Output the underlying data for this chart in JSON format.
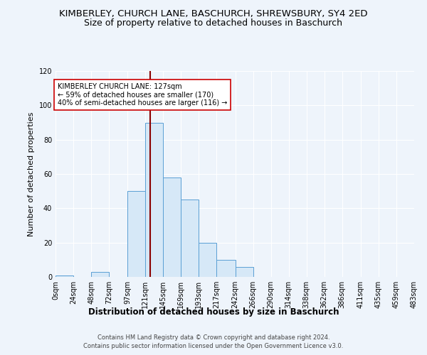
{
  "title": "KIMBERLEY, CHURCH LANE, BASCHURCH, SHREWSBURY, SY4 2ED",
  "subtitle": "Size of property relative to detached houses in Baschurch",
  "xlabel": "Distribution of detached houses by size in Baschurch",
  "ylabel": "Number of detached properties",
  "bin_edges": [
    0,
    24,
    48,
    72,
    97,
    121,
    145,
    169,
    193,
    217,
    242,
    266,
    290,
    314,
    338,
    362,
    386,
    411,
    435,
    459,
    483
  ],
  "bin_heights": [
    1,
    0,
    3,
    0,
    50,
    90,
    58,
    45,
    20,
    10,
    6,
    0,
    0,
    0,
    0,
    0,
    0,
    0,
    0,
    0
  ],
  "bar_facecolor": "#d6e8f7",
  "bar_edgecolor": "#5a9fd4",
  "background_color": "#eef4fb",
  "grid_color": "#ffffff",
  "vline_x": 127,
  "vline_color": "#8b0000",
  "annotation_text": "KIMBERLEY CHURCH LANE: 127sqm\n← 59% of detached houses are smaller (170)\n40% of semi-detached houses are larger (116) →",
  "annotation_box_color": "#ffffff",
  "annotation_box_edgecolor": "#cc0000",
  "ylim": [
    0,
    120
  ],
  "yticks": [
    0,
    20,
    40,
    60,
    80,
    100,
    120
  ],
  "footer_line1": "Contains HM Land Registry data © Crown copyright and database right 2024.",
  "footer_line2": "Contains public sector information licensed under the Open Government Licence v3.0.",
  "title_fontsize": 9.5,
  "subtitle_fontsize": 9,
  "tick_labelsize": 7,
  "ylabel_fontsize": 8,
  "xlabel_fontsize": 8.5,
  "annotation_fontsize": 7,
  "footer_fontsize": 6
}
